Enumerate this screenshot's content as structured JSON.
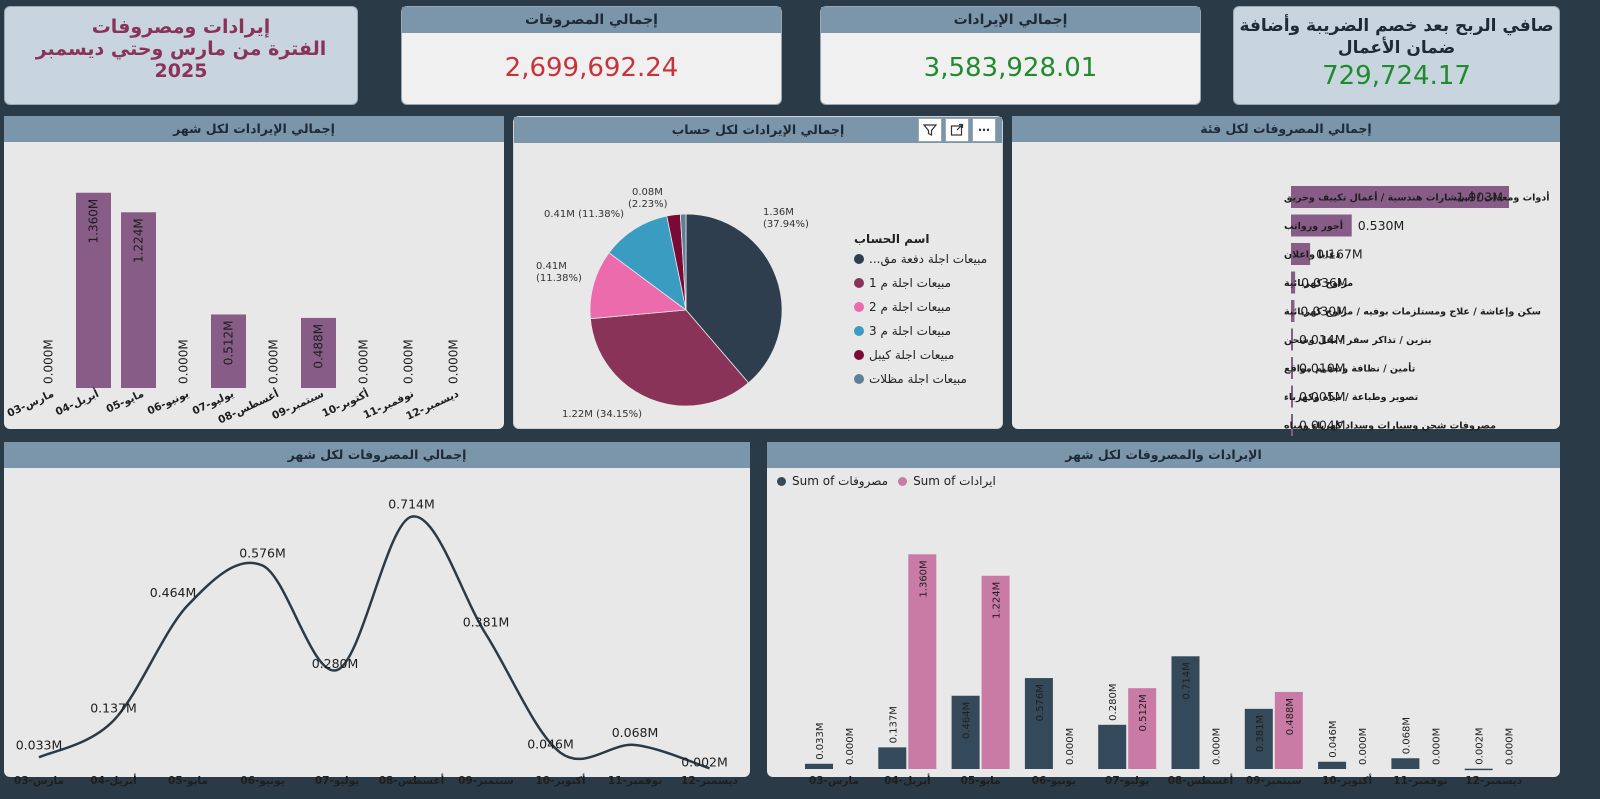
{
  "title": {
    "line1": "إيرادات ومصروفات",
    "line2": "الفترة من مارس وحتي ديسمبر",
    "line3": "2025"
  },
  "kpis": {
    "expenses": {
      "label": "إجمالي المصروفات",
      "value": "2,699,692.24",
      "color": "#c8323a"
    },
    "revenues": {
      "label": "إجمالي الإيرادات",
      "value": "3,583,928.01",
      "color": "#1f8a2e"
    },
    "net": {
      "line1": "صافي الربح بعد خصم الضريبة وأضافة",
      "line2": "ضمان الأعمال",
      "value": "729,724.17",
      "color": "#1f8a2e"
    }
  },
  "colors": {
    "revenue_bar": "#875c87",
    "expense_dark": "#34495a",
    "revenue_pink": "#c97ba6"
  },
  "rev_month": {
    "title": "إجمالي الإيرادات لكل شهر",
    "chart_data": {
      "type": "bar",
      "categories": [
        "مارس-03",
        "أبريل-04",
        "مايو-05",
        "يونيو-06",
        "يوليو-07",
        "أغسطس-08",
        "سبتمبر-09",
        "أكتوبر-10",
        "نوفمبر-11",
        "ديسمبر-12"
      ],
      "values": [
        0.0,
        1.36,
        1.224,
        0.0,
        0.512,
        0.0,
        0.488,
        0.0,
        0.0,
        0.0
      ],
      "labels": [
        "0.000M",
        "1.360M",
        "1.224M",
        "0.000M",
        "0.512M",
        "0.000M",
        "0.488M",
        "0.000M",
        "0.000M",
        "0.000M"
      ],
      "ylim": [
        0,
        1.4
      ]
    }
  },
  "pie": {
    "title": "إجمالي الإيرادات لكل حساب",
    "legend_title": "اسم الحساب",
    "chart_data": {
      "type": "pie",
      "slices": [
        {
          "name": "...مبيعات اجلة دفعة مق",
          "value": 1.36,
          "pct": 37.94,
          "label": "1.36M",
          "pct_label": "(37.94%)",
          "color": "#2e3e4e"
        },
        {
          "name": "مبيعات اجلة م 1",
          "value": 1.22,
          "pct": 34.15,
          "label": "1.22M (34.15%)",
          "pct_label": "",
          "color": "#8a3358"
        },
        {
          "name": "مبيعات اجلة م 2",
          "value": 0.41,
          "pct": 11.38,
          "label": "0.41M",
          "pct_label": "(11.38%)",
          "color": "#ec6bad"
        },
        {
          "name": "مبيعات اجلة م 3",
          "value": 0.41,
          "pct": 11.38,
          "label": "0.41M (11.38%)",
          "pct_label": "",
          "color": "#3a9cc0"
        },
        {
          "name": "مبيعات اجلة كيبل",
          "value": 0.08,
          "pct": 2.23,
          "label": "0.08M",
          "pct_label": "(2.23%)",
          "color": "#7a0a34"
        },
        {
          "name": "مبيعات اجلة مظلات",
          "value": 0.03,
          "pct": 0.92,
          "label": "",
          "pct_label": "",
          "color": "#5f7f99"
        }
      ]
    }
  },
  "exp_cat": {
    "title": "إجمالي المصروفات لكل فئة",
    "chart_data": {
      "type": "bar",
      "orientation": "horizontal",
      "categories": [
        "أدوات ومعدات / أستشارات هندسية / أعمال تكييف وحريق",
        "أجور ورواتب",
        "دعايا واعلان",
        "مراوح كهربائية",
        "سكن وإعاشة / علاج ومستلزمات بوفيه / مراوح كهربائية",
        "بنزين / تذاكر سفر / نقل وشحن",
        "تأمين / نظافة وتعقيم مواقع",
        "تصوير وطباعة / مياه وكهرباء",
        "مصروفات شحن وسيارات وسداد كهرباء ومياه"
      ],
      "values": [
        1.903,
        0.53,
        0.167,
        0.036,
        0.03,
        0.014,
        0.01,
        0.005,
        0.004
      ],
      "labels": [
        "1.903M",
        "0.530M",
        "0.167M",
        "0.036M",
        "0.030M",
        "0.014M",
        "0.010M",
        "0.005M",
        "0.004M"
      ],
      "xlim": [
        0,
        1.903
      ]
    }
  },
  "exp_month": {
    "title": "إجمالي المصروفات لكل شهر",
    "chart_data": {
      "type": "line",
      "categories": [
        "مارس-03",
        "أبريل-04",
        "مايو-05",
        "يونيو-06",
        "يوليو-07",
        "أغسطس-08",
        "سبتمبر-09",
        "أكتوبر-10",
        "نوفمبر-11",
        "ديسمبر-12"
      ],
      "values": [
        0.033,
        0.137,
        0.464,
        0.576,
        0.28,
        0.714,
        0.381,
        0.046,
        0.068,
        0.002
      ],
      "labels": [
        "0.033M",
        "0.137M",
        "0.464M",
        "0.576M",
        "0.280M",
        "0.714M",
        "0.381M",
        "0.046M",
        "0.068M",
        "0.002M"
      ],
      "ylim": [
        0,
        0.75
      ]
    }
  },
  "combo": {
    "title": "الإيرادات والمصروفات لكل شهر",
    "legend": [
      {
        "label": "Sum of مصروفات",
        "color": "#34495a"
      },
      {
        "label": "Sum of ايرادات",
        "color": "#c97ba6"
      }
    ],
    "chart_data": {
      "type": "bar",
      "categories": [
        "مارس-03",
        "أبريل-04",
        "مايو-05",
        "يونيو-06",
        "يوليو-07",
        "أغسطس-08",
        "سبتمبر-09",
        "أكتوبر-10",
        "نوفمبر-11",
        "ديسمبر-12"
      ],
      "series": [
        {
          "name": "Sum of مصروفات",
          "values": [
            0.033,
            0.137,
            0.464,
            0.576,
            0.28,
            0.714,
            0.381,
            0.046,
            0.068,
            0.002
          ],
          "labels": [
            "0.033M",
            "0.137M",
            "0.464M",
            "0.576M",
            "0.280M",
            "0.714M",
            "0.381M",
            "0.046M",
            "0.068M",
            "0.002M"
          ]
        },
        {
          "name": "Sum of ايرادات",
          "values": [
            0.0,
            1.36,
            1.224,
            0.0,
            0.512,
            0.0,
            0.488,
            0.0,
            0.0,
            0.0
          ],
          "labels": [
            "0.000M",
            "1.360M",
            "1.224M",
            "0.000M",
            "0.512M",
            "0.000M",
            "0.488M",
            "0.000M",
            "0.000M",
            "0.000M"
          ]
        }
      ],
      "ylim": [
        0,
        1.4
      ]
    }
  }
}
